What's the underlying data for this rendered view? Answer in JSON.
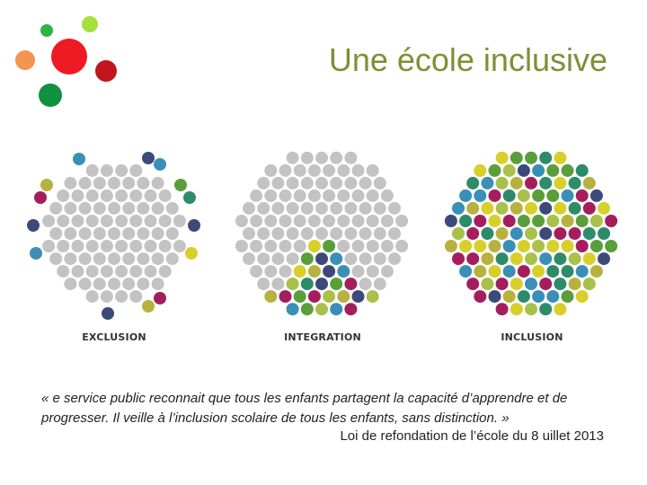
{
  "slide": {
    "title": "Une école inclusive",
    "quote": "«  e service public reconnait que tous les enfants partagent la capacité d’apprendre et de progresser. Il veille à l’inclusion scolaire de tous les enfants, sans distinction. »",
    "source": "Loi de refondation de l’école du 8 uillet 2013"
  },
  "palette": {
    "grey": "#c3c3c3",
    "navy": "#3d4a79",
    "blue": "#3a8fb7",
    "magenta": "#a41e5e",
    "teal": "#2e8b6a",
    "green": "#5a9e3c",
    "olive": "#b7b23f",
    "yellow": "#d8cf2a",
    "lime": "#a9c04a"
  },
  "logo_colors": [
    "#2db34a",
    "#a6e03a",
    "#f4954f",
    "#ee1b24",
    "#c2161c",
    "#0f9140"
  ],
  "diagrams": [
    {
      "name": "exclusion",
      "label": "EXCLUSION"
    },
    {
      "name": "integration",
      "label": "INTEGRATION"
    },
    {
      "name": "inclusion",
      "label": "INCLUSION"
    }
  ]
}
